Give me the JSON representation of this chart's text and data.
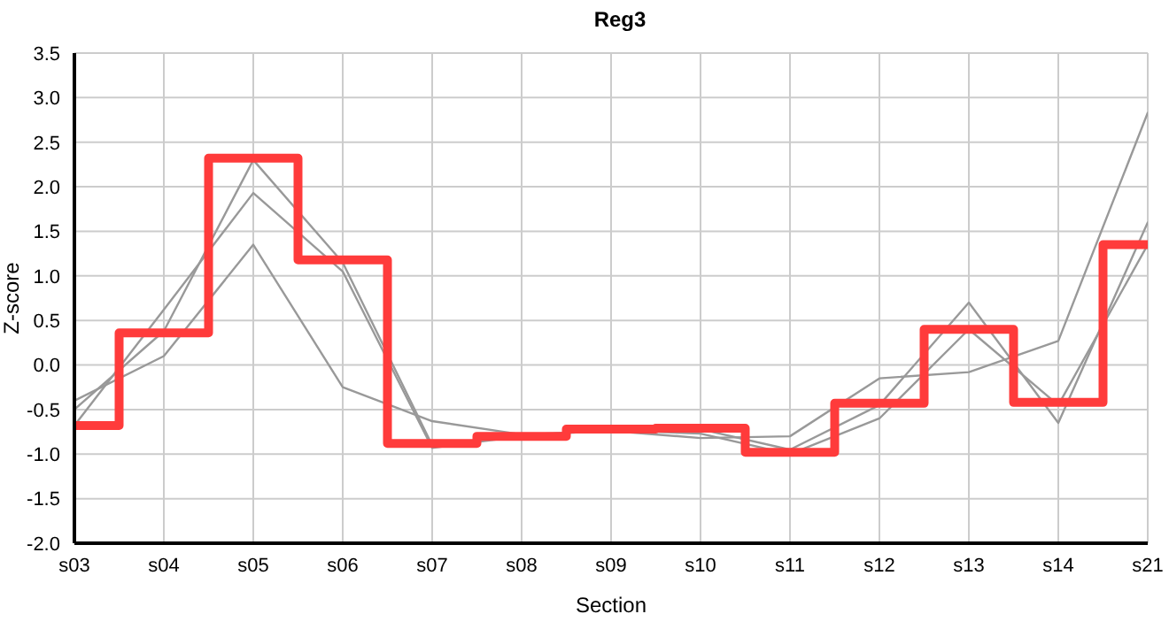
{
  "chart_data": {
    "type": "line",
    "title": "Reg3",
    "xlabel": "Section",
    "ylabel": "Z-score",
    "categories": [
      "s03",
      "s04",
      "s05",
      "s06",
      "s07",
      "s08",
      "s09",
      "s10",
      "s11",
      "s12",
      "s13",
      "s14",
      "s21"
    ],
    "series": [
      {
        "color": "#999999",
        "values": [
          -0.5,
          0.38,
          2.3,
          1.15,
          -0.9,
          -0.8,
          -0.72,
          -0.72,
          -0.95,
          -0.45,
          0.7,
          -0.65,
          1.6
        ]
      },
      {
        "color": "#999999",
        "values": [
          -0.68,
          0.62,
          1.93,
          1.05,
          -0.93,
          -0.8,
          -0.73,
          -0.77,
          -1.0,
          -0.6,
          0.4,
          -0.45,
          1.35
        ]
      },
      {
        "color": "#999999",
        "values": [
          -0.4,
          0.1,
          1.35,
          -0.25,
          -0.63,
          -0.78,
          -0.74,
          -0.82,
          -0.8,
          -0.15,
          -0.08,
          0.27,
          2.83
        ]
      },
      {
        "type": "step",
        "color": "#ff3b3b",
        "values": [
          -0.68,
          0.36,
          2.32,
          1.18,
          -0.88,
          -0.8,
          -0.72,
          -0.71,
          -0.98,
          -0.43,
          0.4,
          -0.42,
          1.35
        ]
      }
    ],
    "ylim": [
      -2.0,
      3.5
    ],
    "yticks": [
      {
        "value": -2,
        "label": "-2.0"
      },
      {
        "value": -1.5,
        "label": "-1.5"
      },
      {
        "value": -1,
        "label": "-1.0"
      },
      {
        "value": -0.5,
        "label": "-0.5"
      },
      {
        "value": 0,
        "label": "0.0"
      },
      {
        "value": 0.5,
        "label": "0.5"
      },
      {
        "value": 1,
        "label": "1.0"
      },
      {
        "value": 1.5,
        "label": "1.5"
      },
      {
        "value": 2,
        "label": "2.0"
      },
      {
        "value": 2.5,
        "label": "2.5"
      },
      {
        "value": 3,
        "label": "3.0"
      },
      {
        "value": 3.5,
        "label": "3.5"
      }
    ],
    "grid": true,
    "marker": "none"
  }
}
